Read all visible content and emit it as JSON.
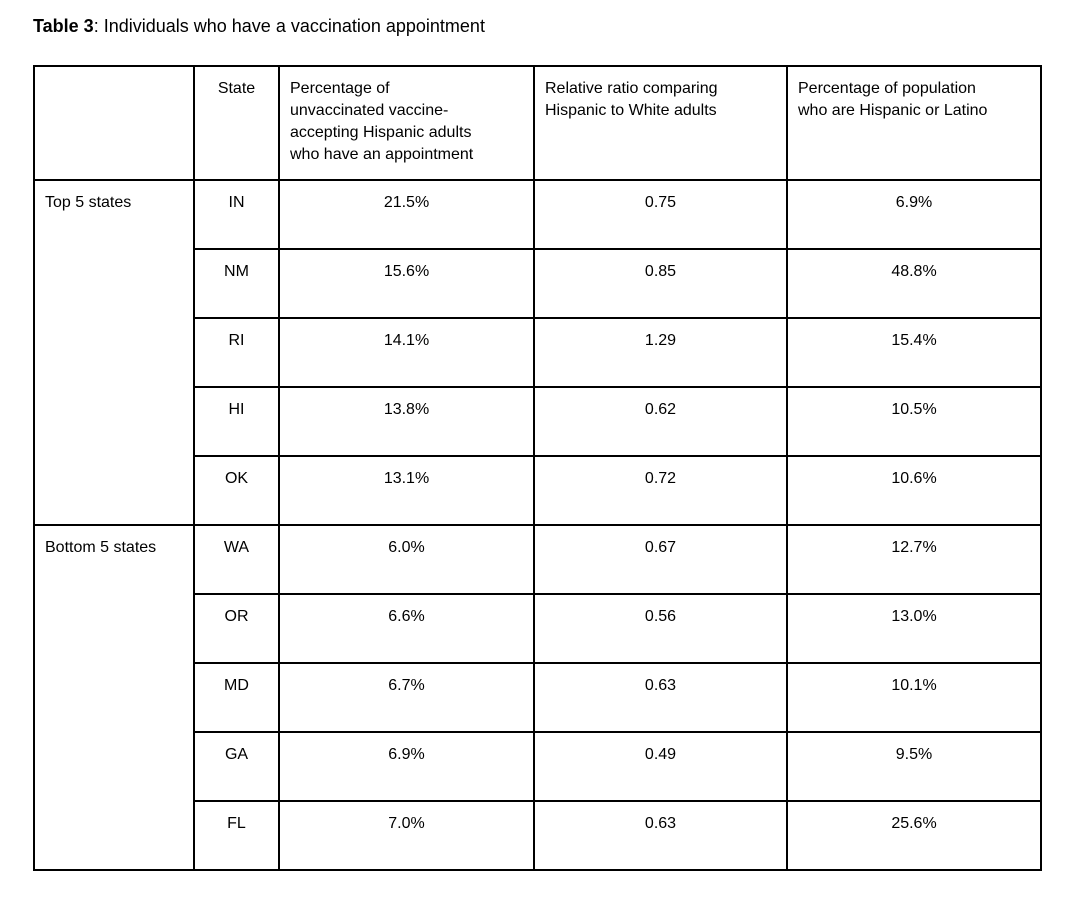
{
  "page": {
    "title_bold": "Table 3",
    "title_rest": ": Individuals who have a vaccination appointment"
  },
  "table": {
    "headers": {
      "group": "",
      "state": "State",
      "pct_appointment": "Percentage of\nunvaccinated vaccine-\naccepting Hispanic adults\nwho have an appointment",
      "relative_ratio": "Relative ratio comparing\nHispanic to White adults",
      "pct_population": "Percentage of population\nwho are Hispanic or Latino"
    },
    "groups": [
      {
        "label": "Top 5 states",
        "rows": [
          {
            "state": "IN",
            "pct_appointment": "21.5%",
            "relative_ratio": "0.75",
            "pct_population": "6.9%"
          },
          {
            "state": "NM",
            "pct_appointment": "15.6%",
            "relative_ratio": "0.85",
            "pct_population": "48.8%"
          },
          {
            "state": "RI",
            "pct_appointment": "14.1%",
            "relative_ratio": "1.29",
            "pct_population": "15.4%"
          },
          {
            "state": "HI",
            "pct_appointment": "13.8%",
            "relative_ratio": "0.62",
            "pct_population": "10.5%"
          },
          {
            "state": "OK",
            "pct_appointment": "13.1%",
            "relative_ratio": "0.72",
            "pct_population": "10.6%"
          }
        ]
      },
      {
        "label": "Bottom 5 states",
        "rows": [
          {
            "state": "WA",
            "pct_appointment": "6.0%",
            "relative_ratio": "0.67",
            "pct_population": "12.7%"
          },
          {
            "state": "OR",
            "pct_appointment": "6.6%",
            "relative_ratio": "0.56",
            "pct_population": "13.0%"
          },
          {
            "state": "MD",
            "pct_appointment": "6.7%",
            "relative_ratio": "0.63",
            "pct_population": "10.1%"
          },
          {
            "state": "GA",
            "pct_appointment": "6.9%",
            "relative_ratio": "0.49",
            "pct_population": "9.5%"
          },
          {
            "state": "FL",
            "pct_appointment": "7.0%",
            "relative_ratio": "0.63",
            "pct_population": "25.6%"
          }
        ]
      }
    ]
  },
  "chart_data": {
    "type": "table",
    "title": "Table 3: Individuals who have a vaccination appointment",
    "columns": [
      "",
      "State",
      "Percentage of unvaccinated vaccine-accepting Hispanic adults who have an appointment",
      "Relative ratio comparing Hispanic to White adults",
      "Percentage of population who are Hispanic or Latino"
    ],
    "rows": [
      [
        "Top 5 states",
        "IN",
        "21.5%",
        "0.75",
        "6.9%"
      ],
      [
        "Top 5 states",
        "NM",
        "15.6%",
        "0.85",
        "48.8%"
      ],
      [
        "Top 5 states",
        "RI",
        "14.1%",
        "1.29",
        "15.4%"
      ],
      [
        "Top 5 states",
        "HI",
        "13.8%",
        "0.62",
        "10.5%"
      ],
      [
        "Top 5 states",
        "OK",
        "13.1%",
        "0.72",
        "10.6%"
      ],
      [
        "Bottom 5 states",
        "WA",
        "6.0%",
        "0.67",
        "12.7%"
      ],
      [
        "Bottom 5 states",
        "OR",
        "6.6%",
        "0.56",
        "13.0%"
      ],
      [
        "Bottom 5 states",
        "MD",
        "6.7%",
        "0.63",
        "10.1%"
      ],
      [
        "Bottom 5 states",
        "GA",
        "6.9%",
        "0.49",
        "9.5%"
      ],
      [
        "Bottom 5 states",
        "FL",
        "7.0%",
        "0.63",
        "25.6%"
      ]
    ]
  }
}
